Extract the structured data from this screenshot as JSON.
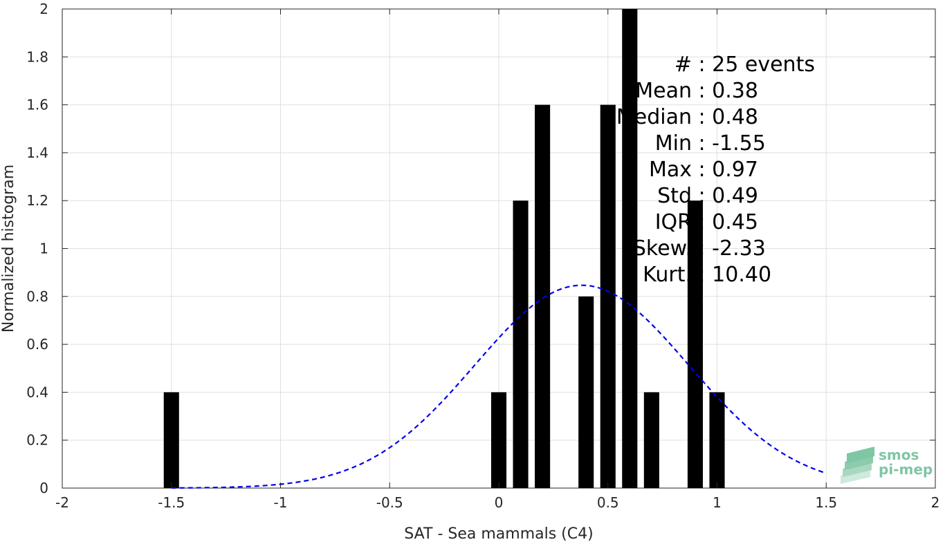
{
  "chart_data": {
    "type": "bar",
    "xlabel": "SAT - Sea mammals (C4)",
    "ylabel": "Normalized histogram",
    "xlim": [
      -2,
      2
    ],
    "ylim": [
      0,
      2
    ],
    "xticks": [
      -2,
      -1.5,
      -1,
      -0.5,
      0,
      0.5,
      1,
      1.5,
      2
    ],
    "xtick_labels": [
      "-2",
      "-1.5",
      "-1",
      "-0.5",
      "0",
      "0.5",
      "1",
      "1.5",
      "2"
    ],
    "yticks": [
      0,
      0.2,
      0.4,
      0.6,
      0.8,
      1,
      1.2,
      1.4,
      1.6,
      1.8,
      2
    ],
    "ytick_labels": [
      "0",
      "0.2",
      "0.4",
      "0.6",
      "0.8",
      "1",
      "1.2",
      "1.4",
      "1.6",
      "1.8",
      "2"
    ],
    "grid": true,
    "bar_width": 0.07,
    "bar_color": "#000000",
    "bars": [
      {
        "x": -1.5,
        "value": 0.4
      },
      {
        "x": 0.0,
        "value": 0.4
      },
      {
        "x": 0.1,
        "value": 1.2
      },
      {
        "x": 0.2,
        "value": 1.6
      },
      {
        "x": 0.4,
        "value": 0.8
      },
      {
        "x": 0.5,
        "value": 1.6
      },
      {
        "x": 0.6,
        "value": 2.0
      },
      {
        "x": 0.7,
        "value": 0.4
      },
      {
        "x": 0.9,
        "value": 1.2
      },
      {
        "x": 1.0,
        "value": 0.4
      }
    ],
    "fit_curve": {
      "style": "dashed",
      "color": "#0000ee",
      "mean": 0.38,
      "std": 0.49,
      "scale": 1.04,
      "x_range": [
        -1.5,
        1.5
      ]
    },
    "stats": [
      "#  : 25 events",
      "Mean : 0.38",
      "Median : 0.48",
      "Min : -1.55",
      "Max : 0.97",
      "Std : 0.49",
      "IQR : 0.45",
      "Skew. : -2.33",
      "Kurt. : 10.40"
    ]
  },
  "logo": {
    "line1": "smos",
    "line2": "pi-mep"
  }
}
